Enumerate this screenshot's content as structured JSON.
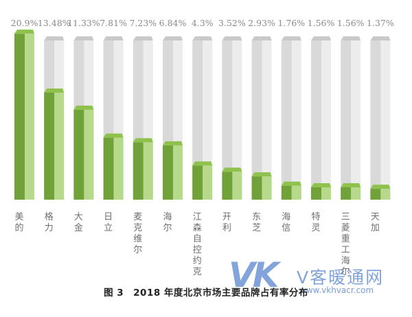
{
  "chart_data": {
    "type": "bar",
    "categories": [
      "美的",
      "格力",
      "大金",
      "日立",
      "麦克维尔",
      "海尔",
      "江森自控约克",
      "开利",
      "东芝",
      "海信",
      "特灵",
      "三菱重工海尔",
      "天加"
    ],
    "value_labels": [
      "20.9%",
      "13.48%",
      "11.33%",
      "7.81%",
      "7.23%",
      "6.84%",
      "4.3%",
      "3.52%",
      "2.93%",
      "1.76%",
      "1.56%",
      "1.56%",
      "1.37%"
    ],
    "series": [
      {
        "values": [
          20.9,
          13.48,
          11.33,
          7.81,
          7.23,
          6.84,
          4.3,
          3.52,
          2.93,
          1.76,
          1.56,
          1.56,
          1.37
        ]
      }
    ],
    "title": "图 3　2018 年度北京市场主要品牌占有率分布",
    "xlabel": "",
    "ylabel": "",
    "ylim": [
      0,
      21
    ],
    "grid": false,
    "legend": "none",
    "colors": {
      "bar_front": "#71a23a",
      "bar_side": "#b6d98c",
      "bar_top": "#8fc24c",
      "track_front": "#d9d9d9",
      "track_side": "#ececec",
      "track_top": "#c9c9c9"
    }
  },
  "watermark": {
    "logo": "VK",
    "name": "V客暖通网",
    "url": "www.vkhvacr.com"
  }
}
